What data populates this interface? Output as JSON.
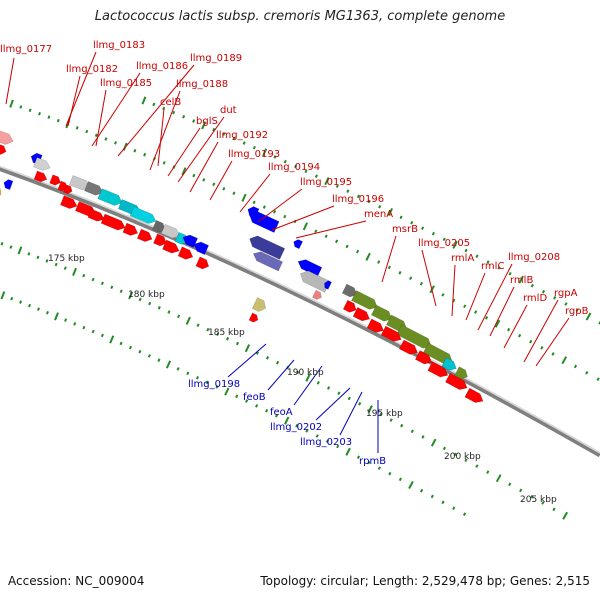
{
  "title": "Lactococcus lactis subsp. cremoris MG1363, complete genome",
  "footer": {
    "accession": "Accession: NC_009004",
    "summary": "Topology: circular; Length: 2,529,478 bp; Genes: 2,515"
  },
  "colors": {
    "backbone": "#9a9a9a",
    "forward_cds": "#ff0000",
    "reverse_cds": "#0000ff",
    "label_forward": "#cc0000",
    "label_reverse": "#0000bb",
    "ticks": "#228b22"
  },
  "scale_labels": [
    "175 kbp",
    "180 kbp",
    "185 kbp",
    "190 kbp",
    "195 kbp",
    "200 kbp",
    "205 kbp"
  ],
  "forward_gene_labels": [
    "llmg_0177",
    "llmg_0183",
    "llmg_0182",
    "llmg_0186",
    "llmg_0189",
    "llmg_0185",
    "llmg_0188",
    "celB",
    "dut",
    "bglS",
    "llmg_0192",
    "llmg_0193",
    "llmg_0194",
    "llmg_0195",
    "llmg_0196",
    "menA",
    "msrB",
    "llmg_0205",
    "rmlA",
    "rmlC",
    "llmg_0208",
    "rmlB",
    "rmlD",
    "rgpA",
    "rgpB"
  ],
  "reverse_gene_labels": [
    "llmg_0198",
    "feoB",
    "feoA",
    "llmg_0202",
    "llmg_0203",
    "rpmB"
  ]
}
